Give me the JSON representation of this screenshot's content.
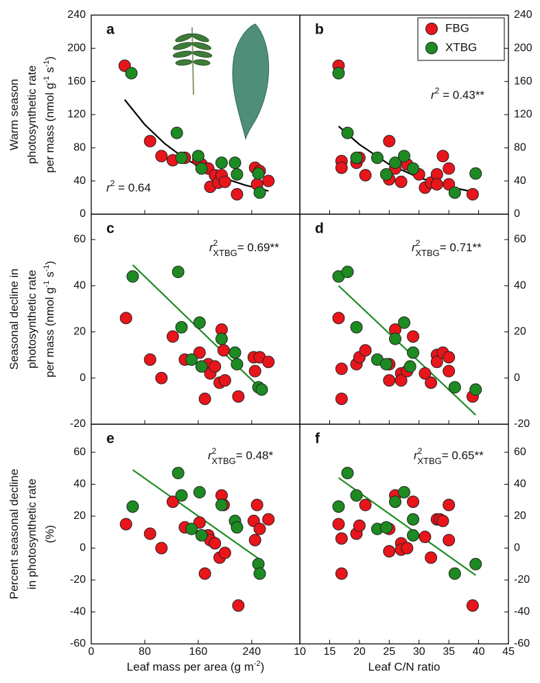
{
  "chart_data": [
    {
      "type": "scatter",
      "letter": "a",
      "xlim": [
        0,
        312
      ],
      "ylim": [
        0,
        240
      ],
      "yticks": [
        0,
        40,
        80,
        120,
        160,
        200,
        240
      ],
      "ylabel": [
        [
          "Warm season"
        ],
        [
          "photosynthetic rate"
        ],
        [
          "per mass (nmol g",
          {
            "sup": "-1"
          },
          " s",
          {
            "sup": "-1"
          },
          ")"
        ]
      ],
      "stat": {
        "symbol": "r",
        "sup": "2",
        "text": " = 0.64"
      },
      "series": [
        {
          "color": "#e8151b",
          "x": [
            50,
            88,
            105,
            122,
            140,
            160,
            165,
            175,
            178,
            185,
            190,
            195,
            200,
            218,
            245,
            248,
            252,
            265
          ],
          "values": [
            179,
            88,
            70,
            65,
            68,
            65,
            60,
            55,
            33,
            47,
            38,
            47,
            39,
            24,
            56,
            36,
            52,
            40
          ]
        },
        {
          "color": "#1d8a22",
          "x": [
            60,
            128,
            135,
            160,
            165,
            195,
            215,
            218,
            250,
            252
          ],
          "values": [
            170,
            98,
            68,
            70,
            55,
            62,
            62,
            48,
            49,
            26
          ]
        }
      ],
      "fit": {
        "color": "#000000",
        "x": [
          50,
          80,
          110,
          140,
          170,
          200,
          230,
          265
        ],
        "y": [
          138,
          108,
          85,
          67,
          54,
          43,
          35,
          28
        ]
      }
    },
    {
      "type": "scatter",
      "letter": "b",
      "xlim": [
        10,
        45
      ],
      "ylim": [
        0,
        240
      ],
      "yticks": [
        0,
        40,
        80,
        120,
        160,
        200,
        240
      ],
      "legend": "upper right",
      "stat": {
        "symbol": "r",
        "sup": "2",
        "text": " = 0.43**"
      },
      "series": [
        {
          "name": "FBG",
          "color": "#e8151b",
          "x": [
            16.5,
            17,
            17,
            19.5,
            20,
            21,
            25,
            25,
            26,
            27,
            28,
            30,
            31,
            32,
            33,
            33,
            34,
            35,
            35,
            39
          ],
          "values": [
            179,
            64,
            56,
            62,
            68,
            47,
            88,
            42,
            55,
            39,
            60,
            48,
            32,
            38,
            48,
            36,
            70,
            55,
            36,
            24
          ]
        },
        {
          "name": "XTBG",
          "color": "#1d8a22",
          "x": [
            16.5,
            18,
            19.5,
            23,
            24.5,
            26,
            27.5,
            29,
            36,
            39.5
          ],
          "values": [
            170,
            98,
            68,
            68,
            48,
            62,
            70,
            55,
            26,
            49
          ]
        }
      ],
      "fit": {
        "color": "#000000",
        "x": [
          16.5,
          20,
          25,
          30,
          35,
          39
        ],
        "y": [
          106,
          84,
          60,
          44,
          33,
          27
        ]
      }
    },
    {
      "type": "scatter",
      "letter": "c",
      "xlim": [
        0,
        312
      ],
      "ylim": [
        -20,
        71
      ],
      "yticks": [
        -20,
        0,
        20,
        40,
        60
      ],
      "ylabel": [
        [
          "Seasonal decline in"
        ],
        [
          "photosynthetic rate"
        ],
        [
          "per mass (nmol g",
          {
            "sup": "-1"
          },
          " s",
          {
            "sup": "-1"
          },
          ")"
        ]
      ],
      "stat": {
        "symbol": "r",
        "sup": "2",
        "sub": "XTBG",
        "text": "= 0.69**"
      },
      "series": [
        {
          "color": "#e8151b",
          "x": [
            52,
            88,
            105,
            122,
            140,
            162,
            170,
            175,
            178,
            185,
            192,
            195,
            198,
            200,
            220,
            243,
            245,
            252,
            265
          ],
          "values": [
            26,
            8,
            0,
            18,
            8,
            11,
            -9,
            6,
            2,
            5,
            -2,
            21,
            12,
            -1,
            -8,
            9,
            3,
            9,
            7
          ]
        },
        {
          "color": "#1d8a22",
          "x": [
            62,
            130,
            135,
            150,
            162,
            165,
            195,
            215,
            218,
            250,
            255
          ],
          "values": [
            44,
            46,
            22,
            8,
            24,
            5,
            17,
            11,
            6,
            -4,
            -5
          ]
        }
      ],
      "fit": {
        "color": "#1d8a22",
        "x": [
          62,
          255
        ],
        "y": [
          49,
          -5
        ]
      }
    },
    {
      "type": "scatter",
      "letter": "d",
      "xlim": [
        10,
        45
      ],
      "ylim": [
        -20,
        71
      ],
      "yticks": [
        -20,
        0,
        20,
        40,
        60
      ],
      "stat": {
        "symbol": "r",
        "sup": "2",
        "sub": "XTBG",
        "text": "= 0.71**"
      },
      "series": [
        {
          "color": "#e8151b",
          "x": [
            16.5,
            17,
            17,
            19.5,
            20,
            21,
            25,
            25,
            26,
            27,
            27,
            28,
            29,
            31,
            32,
            33,
            33,
            34,
            35,
            35,
            39
          ],
          "values": [
            26,
            -9,
            4,
            6,
            9,
            12,
            6,
            -1,
            21,
            2,
            -1,
            3,
            18,
            2,
            -2,
            10,
            7,
            11,
            9,
            3,
            -8
          ]
        },
        {
          "color": "#1d8a22",
          "x": [
            16.5,
            18,
            19.5,
            23,
            24.5,
            26,
            27.5,
            29,
            28.5,
            36,
            39.5
          ],
          "values": [
            44,
            46,
            22,
            8,
            6,
            17,
            24,
            11,
            5,
            -4,
            -5
          ]
        }
      ],
      "fit": {
        "color": "#1d8a22",
        "x": [
          16.5,
          39.5
        ],
        "y": [
          40,
          -16
        ]
      }
    },
    {
      "type": "scatter",
      "letter": "e",
      "xlim": [
        0,
        312
      ],
      "ylim": [
        -60,
        77.6
      ],
      "yticks": [
        -60,
        -40,
        -20,
        0,
        20,
        40,
        60
      ],
      "xticks": [
        0,
        80,
        160,
        240
      ],
      "ylabel": [
        [
          "Percent seasonal decline"
        ],
        [
          "in photosynthetic rate"
        ],
        [
          "(%)"
        ]
      ],
      "xlabel": [
        "Leaf mass per area (g m",
        {
          "sup": "-2"
        },
        ")"
      ],
      "stat": {
        "symbol": "r",
        "sup": "2",
        "sub": "XTBG",
        "text": "= 0.48*"
      },
      "series": [
        {
          "color": "#e8151b",
          "x": [
            52,
            88,
            105,
            122,
            140,
            162,
            170,
            175,
            178,
            185,
            192,
            195,
            198,
            200,
            220,
            243,
            245,
            248,
            252,
            265
          ],
          "values": [
            15,
            9,
            0,
            29,
            13,
            16,
            -16,
            8,
            5,
            3,
            -6,
            33,
            27,
            -3,
            -36,
            17,
            5,
            27,
            12,
            18
          ]
        },
        {
          "color": "#1d8a22",
          "x": [
            62,
            130,
            135,
            150,
            162,
            165,
            195,
            215,
            218,
            250,
            252
          ],
          "values": [
            26,
            47,
            33,
            12,
            35,
            8,
            27,
            17,
            13,
            -10,
            -16
          ]
        }
      ],
      "fit": {
        "color": "#1d8a22",
        "x": [
          62,
          255
        ],
        "y": [
          49,
          -8
        ]
      }
    },
    {
      "type": "scatter",
      "letter": "f",
      "xlim": [
        10,
        45
      ],
      "ylim": [
        -60,
        77.6
      ],
      "yticks": [
        -60,
        -40,
        -20,
        0,
        20,
        40,
        60
      ],
      "xticks": [
        10,
        15,
        20,
        25,
        30,
        35,
        40,
        45
      ],
      "xlabel": [
        "Leaf C/N ratio"
      ],
      "stat": {
        "symbol": "r",
        "sup": "2",
        "sub": "XTBG",
        "text": "= 0.65**"
      },
      "series": [
        {
          "color": "#e8151b",
          "x": [
            16.5,
            17,
            17,
            19.5,
            20,
            21,
            25,
            25,
            26,
            27,
            27,
            28,
            29,
            31,
            32,
            33,
            33.5,
            34,
            35,
            35,
            39
          ],
          "values": [
            15,
            -16,
            6,
            9,
            14,
            27,
            -2,
            12,
            33,
            3,
            -1,
            0,
            29,
            7,
            -6,
            18,
            18,
            17,
            5,
            27,
            -36
          ]
        },
        {
          "color": "#1d8a22",
          "x": [
            16.5,
            18,
            19.5,
            23,
            24.5,
            26,
            27.5,
            29,
            29,
            36,
            39.5
          ],
          "values": [
            26,
            47,
            33,
            12,
            13,
            29,
            35,
            8,
            18,
            -16,
            -10
          ]
        }
      ],
      "fit": {
        "color": "#1d8a22",
        "x": [
          16.5,
          39.5
        ],
        "y": [
          44,
          -17
        ]
      }
    }
  ]
}
